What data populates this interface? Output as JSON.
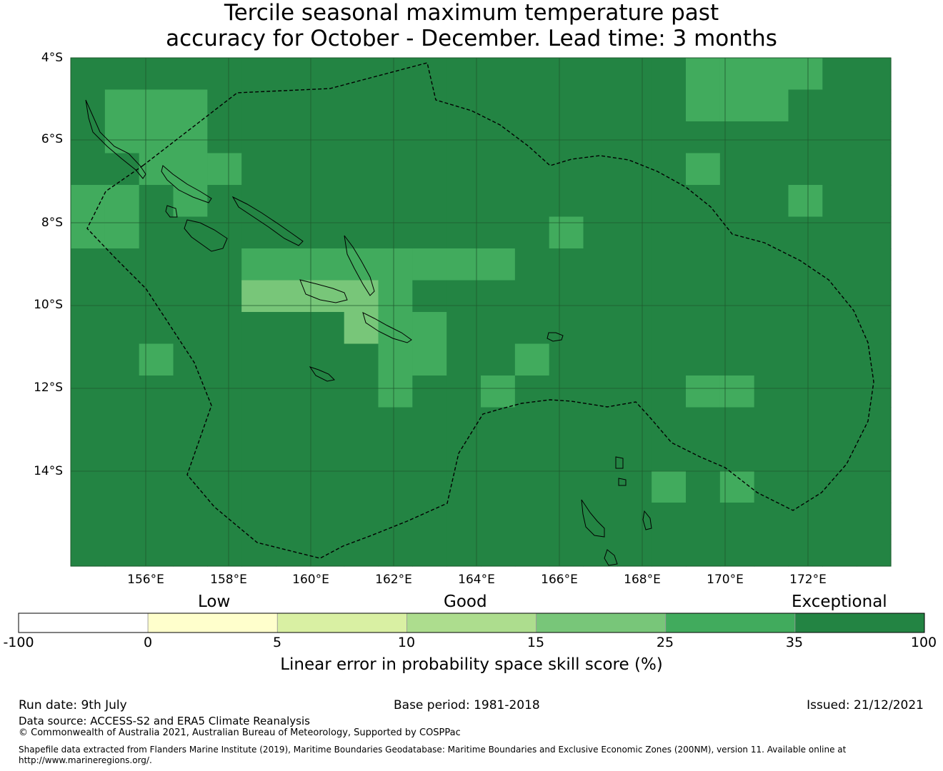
{
  "header": {
    "title_line1": "Tercile seasonal maximum temperature past",
    "title_line2": "accuracy for October - December. Lead time: 3 months"
  },
  "map": {
    "lat_labels": [
      "4°S",
      "6°S",
      "8°S",
      "10°S",
      "12°S",
      "14°S"
    ],
    "lon_labels": [
      "156°E",
      "158°E",
      "160°E",
      "162°E",
      "164°E",
      "166°E",
      "168°E",
      "170°E",
      "172°E"
    ],
    "grid_color": "#1f5a2e",
    "boundary_color": "#000000",
    "skill_grid": {
      "rows": [
        "666666666666666666555566",
        "655566666666666666555666",
        "655566666666666666666666",
        "665556666666666666566666",
        "556566666666666666666566",
        "556666666666665666666666",
        "666665555555566666666666",
        "666664444566666666666666",
        "666666664556666666666666",
        "665666666556656666666666",
        "666666666566566666556666",
        "666666666666666666666666",
        "666666666666666666666666",
        "666666666666666665656666",
        "666666666666666666666666",
        "666666666666666666666666"
      ]
    }
  },
  "colorbar": {
    "category_labels": [
      "Low",
      "Good",
      "Exceptional"
    ],
    "ticks": [
      "-100",
      "0",
      "5",
      "10",
      "15",
      "25",
      "35",
      "100"
    ],
    "colors": [
      "#ffffff",
      "#ffffcc",
      "#d9f0a3",
      "#addd8e",
      "#78c679",
      "#41ab5d",
      "#238443"
    ],
    "title": "Linear error in probability space skill score (%)"
  },
  "footer": {
    "run_date": "Run date: 9th July",
    "base_period": "Base period: 1981-2018",
    "issued": "Issued: 21/12/2021",
    "data_source": "Data source: ACCESS-S2 and ERA5 Climate Reanalysis",
    "copyright": "© Commonwealth of Australia 2021, Australian Bureau of Meteorology, Supported by COSPPac",
    "shapefile_note": "Shapefile data extracted from Flanders Marine Institute (2019), Maritime Boundaries Geodatabase: Maritime Boundaries and Exclusive Economic Zones (200NM), version 11. Available online at http://www.marineregions.org/."
  }
}
